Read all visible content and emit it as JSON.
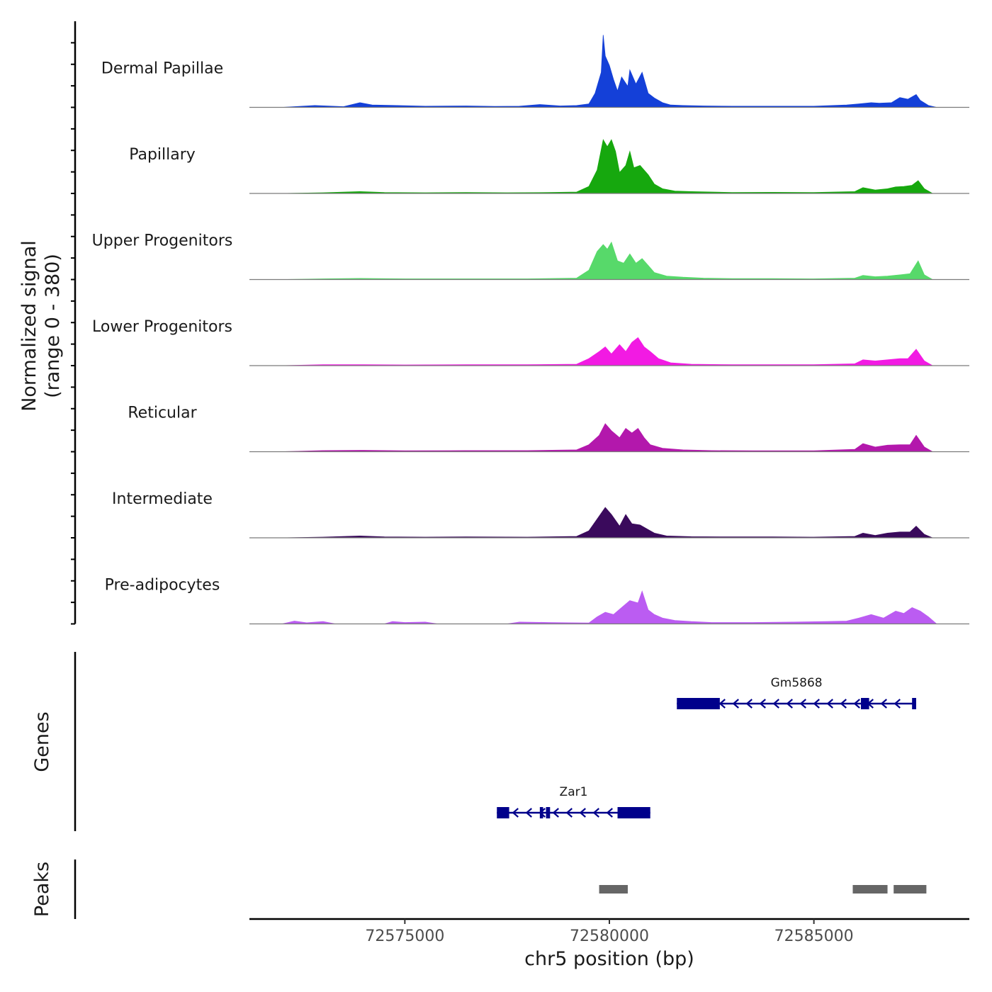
{
  "chart_data": {
    "type": "area",
    "title": "",
    "xlabel": "chr5 position (bp)",
    "ylabel_line1": "Normalized signal",
    "ylabel_line2": "(range 0 - 380)",
    "ylim": [
      0,
      380
    ],
    "xlim": [
      72571200,
      72588800
    ],
    "x_ticks": [
      72575000,
      72580000,
      72585000
    ],
    "x_tick_labels": [
      "72575000",
      "72580000",
      "72585000"
    ],
    "genes_title": "Genes",
    "peaks_title": "Peaks",
    "series": [
      {
        "name": "Dermal Papillae",
        "color": "#1440d8",
        "points": [
          [
            72572000,
            0
          ],
          [
            72572800,
            8
          ],
          [
            72573500,
            3
          ],
          [
            72573900,
            20
          ],
          [
            72574200,
            10
          ],
          [
            72574800,
            8
          ],
          [
            72575500,
            5
          ],
          [
            72576500,
            6
          ],
          [
            72577200,
            4
          ],
          [
            72577800,
            5
          ],
          [
            72578300,
            12
          ],
          [
            72578800,
            6
          ],
          [
            72579200,
            8
          ],
          [
            72579500,
            15
          ],
          [
            72579650,
            60
          ],
          [
            72579800,
            150
          ],
          [
            72579850,
            310
          ],
          [
            72579900,
            220
          ],
          [
            72580000,
            180
          ],
          [
            72580100,
            120
          ],
          [
            72580200,
            70
          ],
          [
            72580300,
            130
          ],
          [
            72580450,
            90
          ],
          [
            72580500,
            160
          ],
          [
            72580650,
            100
          ],
          [
            72580800,
            150
          ],
          [
            72580950,
            60
          ],
          [
            72581100,
            40
          ],
          [
            72581300,
            20
          ],
          [
            72581500,
            10
          ],
          [
            72581800,
            8
          ],
          [
            72582300,
            6
          ],
          [
            72583000,
            5
          ],
          [
            72584000,
            5
          ],
          [
            72585000,
            5
          ],
          [
            72585800,
            10
          ],
          [
            72586100,
            15
          ],
          [
            72586400,
            20
          ],
          [
            72586600,
            18
          ],
          [
            72586900,
            20
          ],
          [
            72587100,
            42
          ],
          [
            72587300,
            35
          ],
          [
            72587500,
            55
          ],
          [
            72587600,
            30
          ],
          [
            72587800,
            8
          ],
          [
            72588000,
            0
          ]
        ]
      },
      {
        "name": "Papillary",
        "color": "#16a80e",
        "points": [
          [
            72572000,
            0
          ],
          [
            72573000,
            3
          ],
          [
            72573900,
            8
          ],
          [
            72574500,
            4
          ],
          [
            72575500,
            3
          ],
          [
            72576500,
            4
          ],
          [
            72577500,
            3
          ],
          [
            72578500,
            4
          ],
          [
            72579200,
            6
          ],
          [
            72579500,
            30
          ],
          [
            72579700,
            100
          ],
          [
            72579850,
            230
          ],
          [
            72579950,
            200
          ],
          [
            72580050,
            230
          ],
          [
            72580150,
            180
          ],
          [
            72580250,
            90
          ],
          [
            72580400,
            120
          ],
          [
            72580500,
            180
          ],
          [
            72580600,
            110
          ],
          [
            72580750,
            120
          ],
          [
            72580950,
            80
          ],
          [
            72581100,
            40
          ],
          [
            72581300,
            20
          ],
          [
            72581600,
            10
          ],
          [
            72582000,
            8
          ],
          [
            72583000,
            4
          ],
          [
            72584000,
            5
          ],
          [
            72585000,
            4
          ],
          [
            72586000,
            8
          ],
          [
            72586200,
            25
          ],
          [
            72586500,
            15
          ],
          [
            72586800,
            20
          ],
          [
            72587000,
            28
          ],
          [
            72587200,
            30
          ],
          [
            72587400,
            35
          ],
          [
            72587550,
            55
          ],
          [
            72587700,
            20
          ],
          [
            72587900,
            0
          ]
        ]
      },
      {
        "name": "Upper Progenitors",
        "color": "#57d96a",
        "points": [
          [
            72572000,
            0
          ],
          [
            72573000,
            3
          ],
          [
            72573900,
            5
          ],
          [
            72575000,
            3
          ],
          [
            72576500,
            3
          ],
          [
            72578000,
            3
          ],
          [
            72579200,
            6
          ],
          [
            72579500,
            40
          ],
          [
            72579700,
            120
          ],
          [
            72579850,
            150
          ],
          [
            72579950,
            130
          ],
          [
            72580050,
            160
          ],
          [
            72580200,
            80
          ],
          [
            72580350,
            70
          ],
          [
            72580500,
            110
          ],
          [
            72580650,
            70
          ],
          [
            72580800,
            90
          ],
          [
            72580950,
            60
          ],
          [
            72581100,
            30
          ],
          [
            72581400,
            15
          ],
          [
            72581800,
            10
          ],
          [
            72582300,
            6
          ],
          [
            72583000,
            4
          ],
          [
            72584000,
            4
          ],
          [
            72585000,
            3
          ],
          [
            72586000,
            6
          ],
          [
            72586200,
            18
          ],
          [
            72586500,
            12
          ],
          [
            72586800,
            15
          ],
          [
            72587100,
            20
          ],
          [
            72587350,
            25
          ],
          [
            72587550,
            80
          ],
          [
            72587700,
            20
          ],
          [
            72587900,
            0
          ]
        ]
      },
      {
        "name": "Lower Progenitors",
        "color": "#f21ae3",
        "points": [
          [
            72572000,
            0
          ],
          [
            72573000,
            4
          ],
          [
            72574000,
            4
          ],
          [
            72575000,
            3
          ],
          [
            72576500,
            4
          ],
          [
            72578000,
            4
          ],
          [
            72579200,
            6
          ],
          [
            72579500,
            30
          ],
          [
            72579750,
            60
          ],
          [
            72579900,
            80
          ],
          [
            72580050,
            50
          ],
          [
            72580250,
            90
          ],
          [
            72580400,
            60
          ],
          [
            72580550,
            100
          ],
          [
            72580700,
            120
          ],
          [
            72580850,
            80
          ],
          [
            72581000,
            60
          ],
          [
            72581200,
            30
          ],
          [
            72581500,
            12
          ],
          [
            72582000,
            6
          ],
          [
            72583000,
            4
          ],
          [
            72584000,
            4
          ],
          [
            72585000,
            4
          ],
          [
            72586000,
            8
          ],
          [
            72586200,
            25
          ],
          [
            72586500,
            20
          ],
          [
            72586800,
            25
          ],
          [
            72587100,
            30
          ],
          [
            72587300,
            30
          ],
          [
            72587500,
            70
          ],
          [
            72587700,
            20
          ],
          [
            72587900,
            0
          ]
        ]
      },
      {
        "name": "Reticular",
        "color": "#b318ac",
        "points": [
          [
            72572000,
            0
          ],
          [
            72573000,
            5
          ],
          [
            72574000,
            6
          ],
          [
            72575000,
            4
          ],
          [
            72576500,
            5
          ],
          [
            72578000,
            5
          ],
          [
            72579200,
            8
          ],
          [
            72579500,
            30
          ],
          [
            72579750,
            70
          ],
          [
            72579900,
            120
          ],
          [
            72580050,
            90
          ],
          [
            72580250,
            60
          ],
          [
            72580400,
            100
          ],
          [
            72580550,
            80
          ],
          [
            72580700,
            100
          ],
          [
            72580850,
            60
          ],
          [
            72581000,
            30
          ],
          [
            72581300,
            15
          ],
          [
            72581800,
            8
          ],
          [
            72582500,
            5
          ],
          [
            72583500,
            4
          ],
          [
            72585000,
            4
          ],
          [
            72586000,
            10
          ],
          [
            72586200,
            35
          ],
          [
            72586500,
            20
          ],
          [
            72586800,
            28
          ],
          [
            72587100,
            30
          ],
          [
            72587350,
            30
          ],
          [
            72587500,
            70
          ],
          [
            72587700,
            20
          ],
          [
            72587900,
            0
          ]
        ]
      },
      {
        "name": "Intermediate",
        "color": "#3a0a5c",
        "points": [
          [
            72572000,
            0
          ],
          [
            72573000,
            3
          ],
          [
            72573900,
            8
          ],
          [
            72574500,
            4
          ],
          [
            72575500,
            3
          ],
          [
            72576500,
            4
          ],
          [
            72578000,
            3
          ],
          [
            72579200,
            6
          ],
          [
            72579500,
            30
          ],
          [
            72579700,
            80
          ],
          [
            72579900,
            130
          ],
          [
            72580050,
            100
          ],
          [
            72580250,
            50
          ],
          [
            72580400,
            100
          ],
          [
            72580550,
            60
          ],
          [
            72580750,
            55
          ],
          [
            72580950,
            35
          ],
          [
            72581100,
            20
          ],
          [
            72581400,
            8
          ],
          [
            72582000,
            5
          ],
          [
            72583000,
            4
          ],
          [
            72584000,
            4
          ],
          [
            72585000,
            3
          ],
          [
            72586000,
            6
          ],
          [
            72586200,
            20
          ],
          [
            72586500,
            10
          ],
          [
            72586800,
            20
          ],
          [
            72587100,
            25
          ],
          [
            72587350,
            25
          ],
          [
            72587500,
            50
          ],
          [
            72587700,
            15
          ],
          [
            72587900,
            0
          ]
        ]
      },
      {
        "name": "Pre-adipocytes",
        "color": "#bb5cf2",
        "points": [
          [
            72572000,
            0
          ],
          [
            72572300,
            12
          ],
          [
            72572600,
            5
          ],
          [
            72573000,
            10
          ],
          [
            72573300,
            0
          ],
          [
            72574500,
            0
          ],
          [
            72574700,
            10
          ],
          [
            72575000,
            6
          ],
          [
            72575500,
            8
          ],
          [
            72575800,
            0
          ],
          [
            72577500,
            0
          ],
          [
            72577800,
            8
          ],
          [
            72578500,
            6
          ],
          [
            72579000,
            5
          ],
          [
            72579500,
            4
          ],
          [
            72579700,
            30
          ],
          [
            72579900,
            50
          ],
          [
            72580100,
            40
          ],
          [
            72580300,
            70
          ],
          [
            72580500,
            100
          ],
          [
            72580700,
            90
          ],
          [
            72580800,
            140
          ],
          [
            72580950,
            60
          ],
          [
            72581100,
            40
          ],
          [
            72581300,
            25
          ],
          [
            72581600,
            15
          ],
          [
            72582000,
            10
          ],
          [
            72582500,
            6
          ],
          [
            72583500,
            6
          ],
          [
            72584500,
            8
          ],
          [
            72585300,
            10
          ],
          [
            72585800,
            12
          ],
          [
            72586100,
            25
          ],
          [
            72586400,
            40
          ],
          [
            72586700,
            25
          ],
          [
            72587000,
            55
          ],
          [
            72587200,
            45
          ],
          [
            72587400,
            70
          ],
          [
            72587600,
            55
          ],
          [
            72587800,
            30
          ],
          [
            72588000,
            0
          ]
        ]
      }
    ],
    "genes": [
      {
        "name": "Zar1",
        "start": 72577250,
        "end": 72581000,
        "strand": "-",
        "row": 2,
        "exons": [
          [
            72577250,
            72577550
          ],
          [
            72578300,
            72578380
          ],
          [
            72578450,
            72578550
          ],
          [
            72580200,
            72581000
          ]
        ]
      },
      {
        "name": "Gm5868",
        "start": 72581650,
        "end": 72587500,
        "strand": "-",
        "row": 1,
        "exons": [
          [
            72581650,
            72582700
          ],
          [
            72586150,
            72586350
          ],
          [
            72587400,
            72587500
          ]
        ]
      }
    ],
    "peaks": [
      [
        72579750,
        72580450
      ],
      [
        72585950,
        72586800
      ],
      [
        72586950,
        72587750
      ]
    ]
  }
}
